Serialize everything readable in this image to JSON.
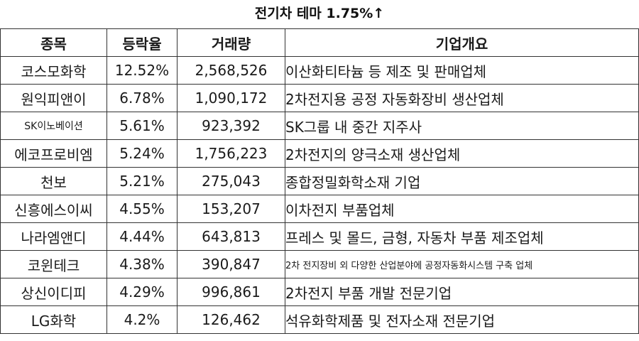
{
  "title": "전기차 테마 1.75%↑",
  "table": {
    "headers": [
      "종목",
      "등락율",
      "거래량",
      "기업개요"
    ],
    "rows": [
      {
        "name": "코스모화학",
        "rate": "12.52%",
        "volume": "2,568,526",
        "desc": "이산화티타늄 등 제조 및 판매업체"
      },
      {
        "name": "원익피앤이",
        "rate": "6.78%",
        "volume": "1,090,172",
        "desc": "2차전지용 공정 자동화장비 생산업체"
      },
      {
        "name": "SK이노베이션",
        "rate": "5.61%",
        "volume": "923,392",
        "desc": "SK그룹 내 중간 지주사"
      },
      {
        "name": "에코프로비엠",
        "rate": "5.24%",
        "volume": "1,756,223",
        "desc": "2차전지의 양극소재 생산업체"
      },
      {
        "name": "천보",
        "rate": "5.21%",
        "volume": "275,043",
        "desc": "종합정밀화학소재 기업"
      },
      {
        "name": "신흥에스이씨",
        "rate": "4.55%",
        "volume": "153,207",
        "desc": "이차전지 부품업체"
      },
      {
        "name": "나라엠앤디",
        "rate": "4.44%",
        "volume": "643,813",
        "desc": "프레스 및 몰드, 금형, 자동차 부품 제조업체"
      },
      {
        "name": "코윈테크",
        "rate": "4.38%",
        "volume": "390,847",
        "desc": "2차 전지장비 외 다양한 산업분야에 공정자동화시스템 구축 업체"
      },
      {
        "name": "상신이디피",
        "rate": "4.29%",
        "volume": "996,861",
        "desc": "2차전지 부품 개발 전문기업"
      },
      {
        "name": "LG화학",
        "rate": "4.2%",
        "volume": "126,462",
        "desc": "석유화학제품 및 전자소재 전문기업"
      }
    ]
  }
}
